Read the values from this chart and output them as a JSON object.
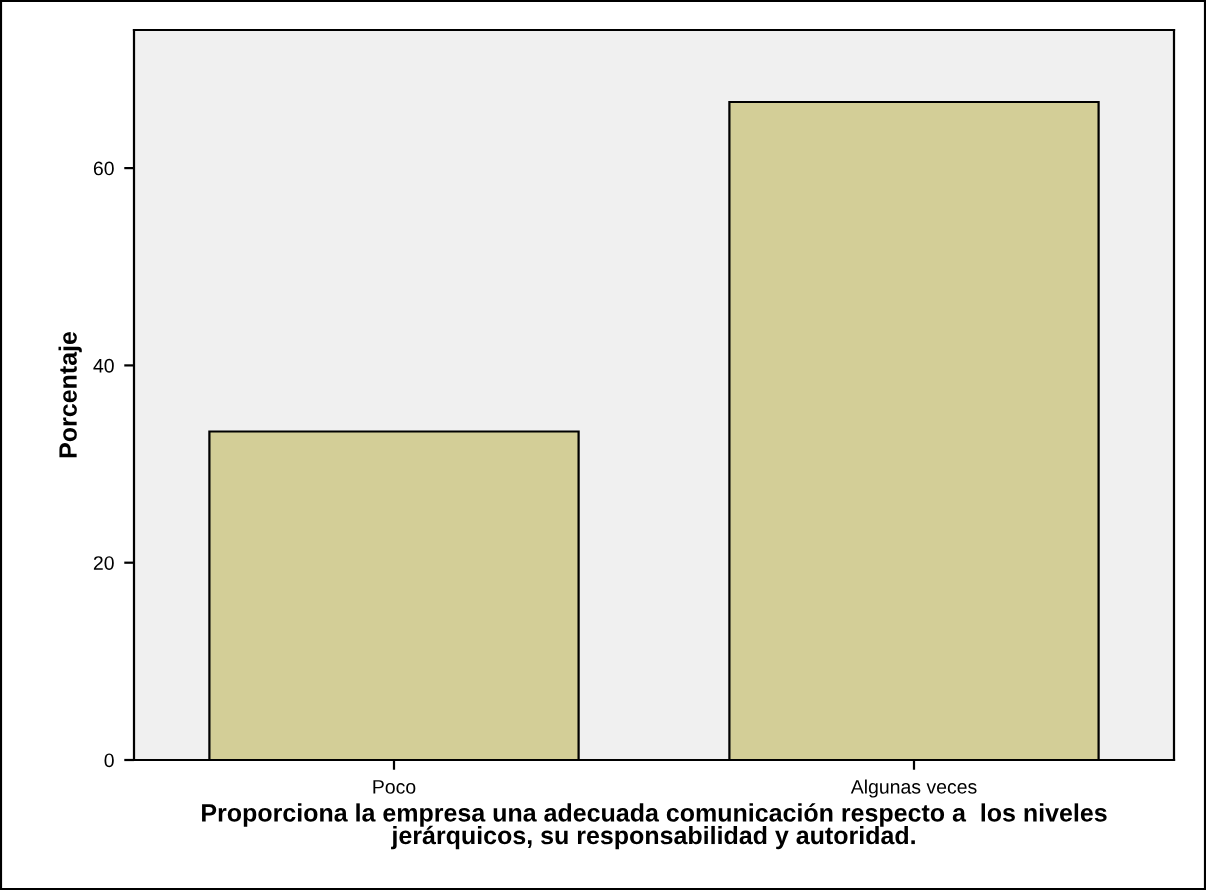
{
  "chart_data": {
    "type": "bar",
    "categories": [
      "Poco",
      "Algunas veces"
    ],
    "values": [
      33.3,
      66.7
    ],
    "color": "#d3ce97",
    "xlabel": "Proporciona la empresa una adecuada comunicación respecto a  los niveles\njerárquicos, su responsabilidad y autoridad.",
    "ylabel": "Porcentaje",
    "ylim": [
      0,
      74
    ],
    "yticks": [
      0,
      20,
      40,
      60
    ],
    "grid": false
  }
}
